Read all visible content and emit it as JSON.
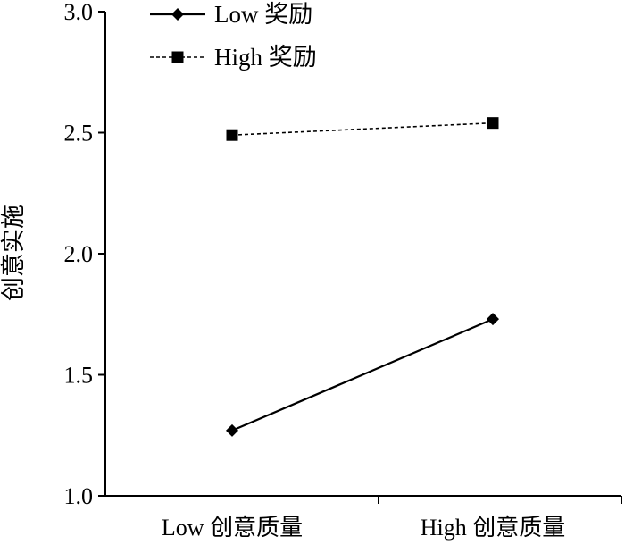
{
  "chart_data": {
    "type": "line",
    "title": "",
    "xlabel": "",
    "ylabel": "创意实施",
    "categories": [
      "Low 创意质量",
      "High 创意质量"
    ],
    "ylim": [
      1.0,
      3.0
    ],
    "yticks": [
      "1.0",
      "1.5",
      "2.0",
      "2.5",
      "3.0"
    ],
    "grid": false,
    "legend_position": "top-left",
    "series": [
      {
        "name": "Low 奖励",
        "values": [
          1.27,
          1.73
        ],
        "marker": "diamond",
        "line_style": "solid",
        "color": "#000000"
      },
      {
        "name": "High 奖励",
        "values": [
          2.49,
          2.54
        ],
        "marker": "square",
        "line_style": "dashed",
        "color": "#000000"
      }
    ]
  }
}
